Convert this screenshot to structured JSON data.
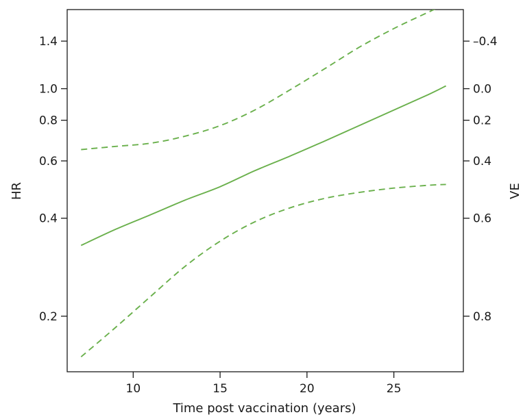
{
  "chart_data": {
    "type": "line",
    "xlabel": "Time post vaccination (years)",
    "ylabel": "HR",
    "y2label": "VE",
    "xlim": [
      6.2,
      29.0
    ],
    "ylim": [
      0.135,
      1.75
    ],
    "yscale": "log",
    "grid": false,
    "x_ticks": [
      {
        "value": 10,
        "label": "10"
      },
      {
        "value": 15,
        "label": "15"
      },
      {
        "value": 20,
        "label": "20"
      },
      {
        "value": 25,
        "label": "25"
      }
    ],
    "y_ticks": [
      {
        "value": 0.2,
        "label": "0.2"
      },
      {
        "value": 0.4,
        "label": "0.4"
      },
      {
        "value": 0.6,
        "label": "0.6"
      },
      {
        "value": 0.8,
        "label": "0.8"
      },
      {
        "value": 1.0,
        "label": "1.0"
      },
      {
        "value": 1.4,
        "label": "1.4"
      }
    ],
    "y2_ticks": [
      {
        "value": 0.2,
        "label": "0.8"
      },
      {
        "value": 0.4,
        "label": "0.6"
      },
      {
        "value": 0.6,
        "label": "0.4"
      },
      {
        "value": 0.8,
        "label": "0.2"
      },
      {
        "value": 1.0,
        "label": "0.0"
      },
      {
        "value": 1.4,
        "label": "–0.4"
      }
    ],
    "series": [
      {
        "role": "estimate",
        "style": "solid",
        "color": "#6ab04c",
        "x": [
          7,
          9,
          11,
          13,
          15,
          17,
          19,
          21,
          23,
          25,
          27,
          28
        ],
        "y": [
          0.33,
          0.37,
          0.41,
          0.455,
          0.5,
          0.56,
          0.62,
          0.69,
          0.77,
          0.86,
          0.96,
          1.02
        ]
      },
      {
        "role": "upper",
        "style": "dashed",
        "color": "#6ab04c",
        "x": [
          7,
          9,
          11,
          13,
          15,
          17,
          19,
          21,
          23,
          25,
          27,
          27.8
        ],
        "y": [
          0.65,
          0.665,
          0.68,
          0.715,
          0.77,
          0.86,
          0.99,
          1.15,
          1.34,
          1.53,
          1.72,
          1.8
        ]
      },
      {
        "role": "lower",
        "style": "dashed",
        "color": "#6ab04c",
        "x": [
          7,
          9,
          11,
          13,
          15,
          17,
          19,
          21,
          23,
          25,
          27,
          28
        ],
        "y": [
          0.15,
          0.185,
          0.23,
          0.285,
          0.34,
          0.39,
          0.43,
          0.46,
          0.48,
          0.495,
          0.505,
          0.508
        ]
      }
    ]
  }
}
